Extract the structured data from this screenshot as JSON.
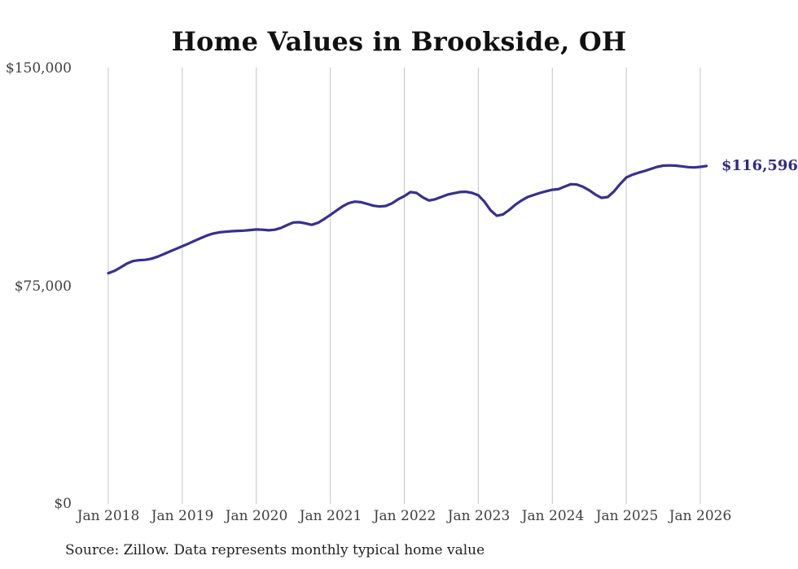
{
  "chart": {
    "title": "Home Values in Brookside, OH",
    "latest_value_label": "$116,596",
    "source_note": "Source: Zillow. Data represents monthly typical home value"
  },
  "colors": {
    "line": "#37308e",
    "latest_label": "#2f2a87",
    "grid": "#c4c4c4",
    "tick_text": "#404040",
    "title_text": "#111111",
    "source_text": "#1f1f1f",
    "background": "#ffffff"
  },
  "chart_data": {
    "type": "line",
    "title": "Home Values in Brookside, OH",
    "xlabel": "",
    "ylabel": "",
    "ylim": [
      0,
      150000
    ],
    "y_ticks": [
      150000,
      75000,
      0
    ],
    "y_tick_labels": [
      "$150,000",
      "$75,000",
      "$0"
    ],
    "x_tick_labels": [
      "Jan 2018",
      "Jan 2019",
      "Jan 2020",
      "Jan 2021",
      "Jan 2022",
      "Jan 2023",
      "Jan 2024",
      "Jan 2025",
      "Jan 2026"
    ],
    "x_start": "2018-01",
    "x_end": "2026-02",
    "x_interval": "month",
    "grid": "vertical-only",
    "legend": "none",
    "latest_value": 116596,
    "latest_value_label": "$116,596",
    "months": [
      "2018-01",
      "2018-02",
      "2018-03",
      "2018-04",
      "2018-05",
      "2018-06",
      "2018-07",
      "2018-08",
      "2018-09",
      "2018-10",
      "2018-11",
      "2018-12",
      "2019-01",
      "2019-02",
      "2019-03",
      "2019-04",
      "2019-05",
      "2019-06",
      "2019-07",
      "2019-08",
      "2019-09",
      "2019-10",
      "2019-11",
      "2019-12",
      "2020-01",
      "2020-02",
      "2020-03",
      "2020-04",
      "2020-05",
      "2020-06",
      "2020-07",
      "2020-08",
      "2020-09",
      "2020-10",
      "2020-11",
      "2020-12",
      "2021-01",
      "2021-02",
      "2021-03",
      "2021-04",
      "2021-05",
      "2021-06",
      "2021-07",
      "2021-08",
      "2021-09",
      "2021-10",
      "2021-11",
      "2021-12",
      "2022-01",
      "2022-02",
      "2022-03",
      "2022-04",
      "2022-05",
      "2022-06",
      "2022-07",
      "2022-08",
      "2022-09",
      "2022-10",
      "2022-11",
      "2022-12",
      "2023-01",
      "2023-02",
      "2023-03",
      "2023-04",
      "2023-05",
      "2023-06",
      "2023-07",
      "2023-08",
      "2023-09",
      "2023-10",
      "2023-11",
      "2023-12",
      "2024-01",
      "2024-02",
      "2024-03",
      "2024-04",
      "2024-05",
      "2024-06",
      "2024-07",
      "2024-08",
      "2024-09",
      "2024-10",
      "2024-11",
      "2024-12",
      "2025-01",
      "2025-02",
      "2025-03",
      "2025-04",
      "2025-05",
      "2025-06",
      "2025-07",
      "2025-08",
      "2025-09",
      "2025-10",
      "2025-11",
      "2025-12",
      "2026-01",
      "2026-02"
    ],
    "series": [
      {
        "name": "Typical home value",
        "values": [
          79600,
          80400,
          81600,
          82900,
          83800,
          84100,
          84200,
          84600,
          85300,
          86200,
          87100,
          88000,
          88900,
          89800,
          90800,
          91700,
          92600,
          93300,
          93700,
          93900,
          94100,
          94200,
          94300,
          94500,
          94700,
          94600,
          94400,
          94600,
          95200,
          96200,
          97100,
          97200,
          96800,
          96300,
          97000,
          98300,
          99700,
          101200,
          102700,
          103800,
          104300,
          104100,
          103500,
          102900,
          102600,
          102800,
          103700,
          105100,
          106200,
          107600,
          107300,
          105800,
          104700,
          105100,
          105900,
          106700,
          107200,
          107600,
          107700,
          107300,
          106500,
          104300,
          101300,
          99400,
          99900,
          101400,
          103200,
          104700,
          105900,
          106600,
          107300,
          107900,
          108400,
          108600,
          109500,
          110300,
          110200,
          109400,
          108200,
          106700,
          105600,
          105900,
          107800,
          110400,
          112600,
          113600,
          114300,
          114900,
          115600,
          116300,
          116700,
          116800,
          116700,
          116500,
          116200,
          116100,
          116300,
          116596
        ]
      }
    ]
  }
}
